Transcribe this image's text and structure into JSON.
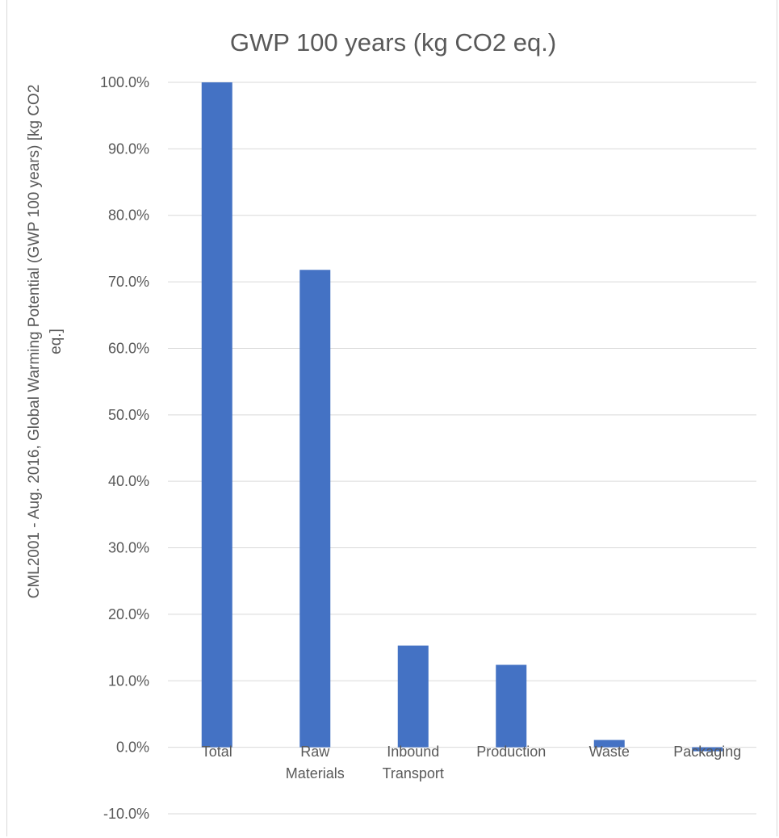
{
  "chart_data": {
    "type": "bar",
    "title": "GWP 100 years (kg CO2 eq.)",
    "ylabel_lines": [
      "CML2001 - Aug. 2016, Global Warming Potential (GWP 100 years) [kg CO2",
      "eq.]"
    ],
    "xlabel": "",
    "categories": [
      [
        "Total"
      ],
      [
        "Raw",
        "Materials"
      ],
      [
        "Inbound",
        "Transport"
      ],
      [
        "Production"
      ],
      [
        "Waste"
      ],
      [
        "Packaging"
      ]
    ],
    "values": [
      100.0,
      71.8,
      15.3,
      12.4,
      1.1,
      -0.6
    ],
    "unit": "%",
    "ylim": [
      -10,
      100
    ],
    "yticks": [
      "-10.0%",
      "0.0%",
      "10.0%",
      "20.0%",
      "30.0%",
      "40.0%",
      "50.0%",
      "60.0%",
      "70.0%",
      "80.0%",
      "90.0%",
      "100.0%"
    ],
    "grid": true,
    "legend": "none",
    "bar_color": "#4472c4",
    "grid_color": "#d9d9d9",
    "text_color": "#595959"
  }
}
